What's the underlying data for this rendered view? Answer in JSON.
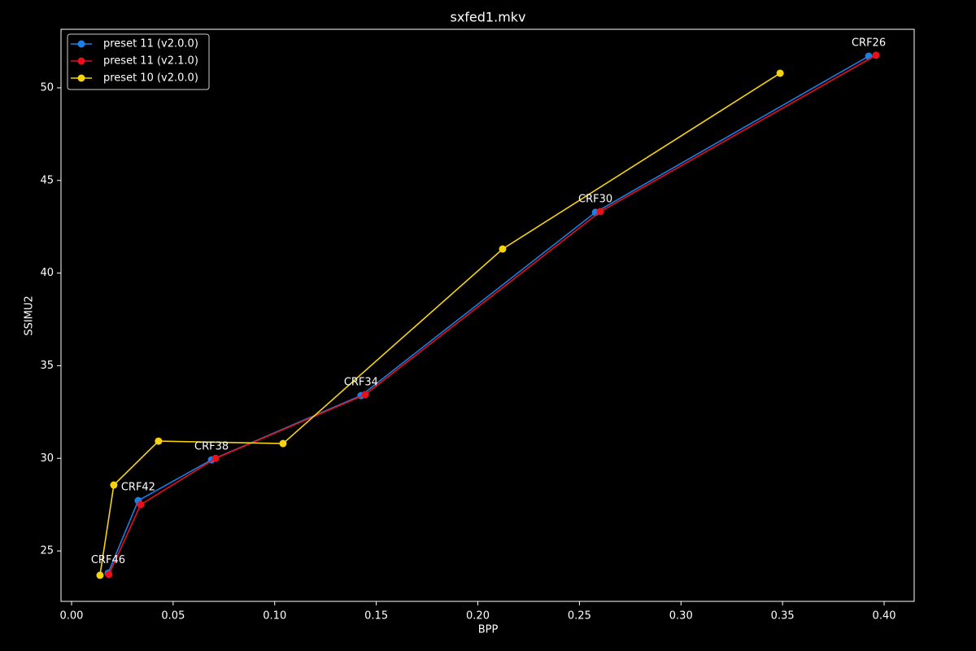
{
  "chart_data": {
    "type": "line",
    "title": "sxfed1.mkv",
    "x_label": "BPP",
    "y_label": "SSIMU2",
    "xlim": [
      -0.0052,
      0.4148
    ],
    "ylim": [
      22.28,
      53.16
    ],
    "xticks": [
      {
        "value": 0,
        "label": "0.00"
      },
      {
        "value": 0.05,
        "label": "0.05"
      },
      {
        "value": 0.1,
        "label": "0.10"
      },
      {
        "value": 0.15,
        "label": "0.15"
      },
      {
        "value": 0.2,
        "label": "0.20"
      },
      {
        "value": 0.25,
        "label": "0.25"
      },
      {
        "value": 0.3,
        "label": "0.30"
      },
      {
        "value": 0.35,
        "label": "0.35"
      },
      {
        "value": 0.4,
        "label": "0.40"
      }
    ],
    "yticks": [
      25,
      30,
      35,
      40,
      45,
      50
    ],
    "legend": "upper left",
    "series": [
      {
        "name": "preset 11 (v2.0.0)",
        "color": "#1a80e8",
        "x": [
          0.3924,
          0.2579,
          0.1425,
          0.0689,
          0.0328,
          0.018
        ],
        "values": [
          51.71,
          43.28,
          33.39,
          29.92,
          27.72,
          23.8
        ]
      },
      {
        "name": "preset 11 (v2.1.0)",
        "color": "#e8101a",
        "x": [
          0.396,
          0.2603,
          0.1445,
          0.0709,
          0.034,
          0.0184
        ],
        "values": [
          51.76,
          43.32,
          33.44,
          30.0,
          27.5,
          23.73
        ]
      },
      {
        "name": "preset 10 (v2.0.0)",
        "color": "#f5d30f",
        "x": [
          0.3488,
          0.2122,
          0.1041,
          0.0428,
          0.0208,
          0.014
        ],
        "values": [
          50.79,
          41.3,
          30.8,
          30.93,
          28.56,
          23.69
        ]
      }
    ],
    "annotations": [
      "CRF26",
      "CRF30",
      "CRF34",
      "CRF38",
      "CRF42",
      "CRF46"
    ]
  }
}
